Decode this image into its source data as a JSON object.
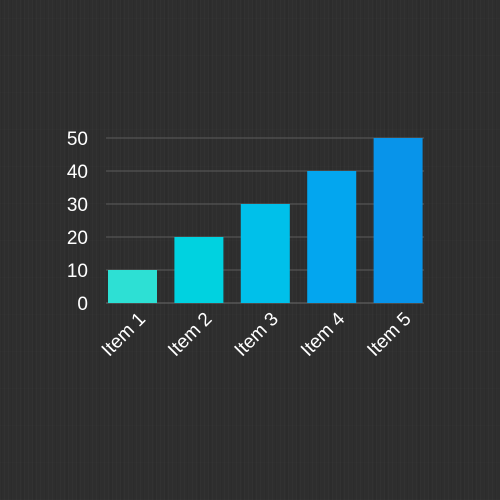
{
  "chart_data": {
    "type": "bar",
    "categories": [
      "Item 1",
      "Item 2",
      "Item 3",
      "Item 4",
      "Item 5"
    ],
    "values": [
      10,
      20,
      30,
      40,
      50
    ],
    "title": "",
    "xlabel": "",
    "ylabel": "",
    "ylim": [
      0,
      50
    ],
    "yticks": [
      0,
      10,
      20,
      30,
      40,
      50
    ],
    "ytick_labels": [
      "0",
      "10",
      "20",
      "30",
      "40",
      "50"
    ],
    "grid": true,
    "legend": "none",
    "bar_colors": [
      "#2de0d4",
      "#00d2e0",
      "#00c0ea",
      "#03a6ef",
      "#0894ea"
    ],
    "background_color": "#2e2e2e",
    "text_color": "#ffffff",
    "grid_color": "#5c5c5c"
  }
}
